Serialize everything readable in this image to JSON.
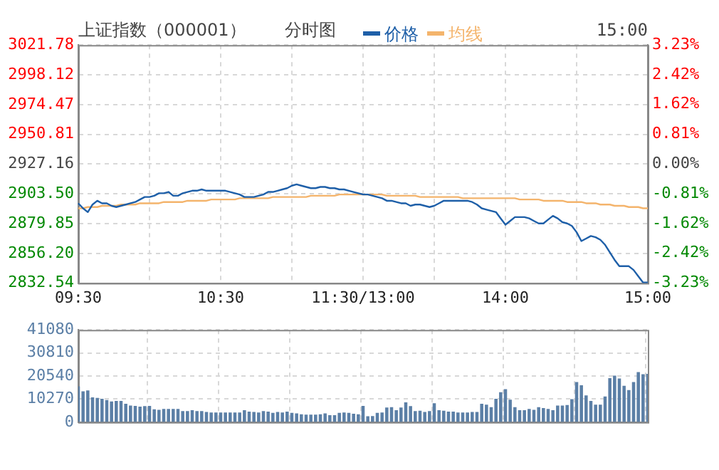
{
  "chart_data": [
    {
      "type": "line",
      "title": "上证指数（000001）",
      "subtitle": "分时图",
      "annotations": [
        "15:00"
      ],
      "legend": "top",
      "grid": true,
      "marker": "none",
      "categories": [
        "09:30",
        null,
        null,
        null,
        null,
        null,
        null,
        null,
        null,
        null,
        null,
        null,
        null,
        null,
        null,
        null,
        null,
        null,
        null,
        null,
        null,
        null,
        null,
        null,
        null,
        null,
        null,
        null,
        null,
        null,
        "10:30",
        null,
        null,
        null,
        null,
        null,
        null,
        null,
        null,
        null,
        null,
        null,
        null,
        null,
        null,
        null,
        null,
        null,
        null,
        null,
        null,
        null,
        null,
        null,
        null,
        null,
        null,
        null,
        null,
        null,
        "11:30/13:00",
        null,
        null,
        null,
        null,
        null,
        null,
        null,
        null,
        null,
        null,
        null,
        null,
        null,
        null,
        null,
        null,
        null,
        null,
        null,
        null,
        null,
        null,
        null,
        null,
        null,
        null,
        null,
        null,
        null,
        "14:00",
        null,
        null,
        null,
        null,
        null,
        null,
        null,
        null,
        null,
        null,
        null,
        null,
        null,
        null,
        null,
        null,
        null,
        null,
        null,
        null,
        null,
        null,
        null,
        null,
        null,
        null,
        null,
        null,
        null,
        "15:00"
      ],
      "ylim": [
        2832.54,
        3021.78
      ],
      "yticks": [
        2832.54,
        {
          "value": 2856.2,
          "label": "2856.20"
        },
        2879.85,
        {
          "value": 2903.5,
          "label": "2903.50"
        },
        2927.16,
        2950.81,
        2974.47,
        2998.12,
        3021.78
      ],
      "y2lim": [
        -3.23,
        3.23
      ],
      "y2ticks": [
        {
          "value": -3.23,
          "label": "-3.23%"
        },
        {
          "value": -2.42,
          "label": "-2.42%"
        },
        {
          "value": -1.62,
          "label": "-1.62%"
        },
        {
          "value": -0.81,
          "label": "-0.81%"
        },
        {
          "value": 0,
          "label": "0.00%"
        },
        {
          "value": 0.81,
          "label": "0.81%"
        },
        {
          "value": 1.62,
          "label": "1.62%"
        },
        {
          "value": 2.42,
          "label": "2.42%"
        },
        {
          "value": 3.23,
          "label": "3.23%"
        }
      ],
      "series": [
        {
          "name": "价格",
          "color": "#1e5fa8",
          "values": [
            2896,
            2892,
            2889,
            2895,
            2898,
            2896,
            2896,
            2894,
            2893,
            2894,
            2895,
            2896,
            2897,
            2899,
            2901,
            2901,
            2902,
            2904,
            2904,
            2905,
            2902,
            2902,
            2904,
            2905,
            2906,
            2906,
            2907,
            2906,
            2906,
            2906,
            2906,
            2906,
            2905,
            2904,
            2903,
            2901,
            2901,
            2901,
            2902,
            2903,
            2905,
            2905,
            2906,
            2907,
            2908,
            2910,
            2911,
            2910,
            2909,
            2908,
            2908,
            2909,
            2909,
            2908,
            2908,
            2907,
            2907,
            2906,
            2905,
            2904,
            2903,
            2903,
            2902,
            2901,
            2900,
            2898,
            2898,
            2897,
            2896,
            2896,
            2894,
            2895,
            2895,
            2894,
            2893,
            2894,
            2896,
            2898,
            2898,
            2898,
            2898,
            2898,
            2898,
            2897,
            2895,
            2892,
            2891,
            2890,
            2889,
            2884,
            2879,
            2882,
            2885,
            2885,
            2885,
            2884,
            2882,
            2880,
            2880,
            2883,
            2886,
            2884,
            2881,
            2880,
            2878,
            2873,
            2866,
            2868,
            2870,
            2869,
            2867,
            2863,
            2857,
            2851,
            2846,
            2846,
            2846,
            2843,
            2838,
            2833,
            2833
          ]
        },
        {
          "name": "均线",
          "color": "#f4b46c",
          "values": [
            2892,
            2892,
            2893,
            2893,
            2893,
            2894,
            2894,
            2894,
            2894,
            2895,
            2895,
            2895,
            2895,
            2896,
            2896,
            2896,
            2896,
            2896,
            2897,
            2897,
            2897,
            2897,
            2897,
            2898,
            2898,
            2898,
            2898,
            2898,
            2899,
            2899,
            2899,
            2899,
            2899,
            2899,
            2900,
            2900,
            2900,
            2900,
            2900,
            2900,
            2900,
            2901,
            2901,
            2901,
            2901,
            2901,
            2901,
            2901,
            2901,
            2902,
            2902,
            2902,
            2902,
            2902,
            2902,
            2903,
            2903,
            2903,
            2903,
            2903,
            2903,
            2903,
            2903,
            2903,
            2903,
            2902,
            2902,
            2902,
            2902,
            2902,
            2902,
            2902,
            2901,
            2901,
            2901,
            2901,
            2901,
            2901,
            2901,
            2901,
            2901,
            2900,
            2900,
            2900,
            2900,
            2900,
            2900,
            2900,
            2900,
            2900,
            2900,
            2900,
            2900,
            2899,
            2899,
            2899,
            2899,
            2899,
            2898,
            2898,
            2898,
            2898,
            2898,
            2897,
            2897,
            2897,
            2897,
            2896,
            2896,
            2896,
            2895,
            2895,
            2895,
            2894,
            2894,
            2894,
            2893,
            2893,
            2893,
            2892,
            2892
          ]
        }
      ]
    },
    {
      "type": "bar",
      "grid": true,
      "tick_labels": "y",
      "categories": [
        null,
        null,
        null,
        null,
        null,
        null,
        null,
        null,
        null,
        null,
        null,
        null,
        null,
        null,
        null,
        null,
        null,
        null,
        null,
        null,
        null,
        null,
        null,
        null,
        null,
        null,
        null,
        null,
        null,
        null,
        null,
        null,
        null,
        null,
        null,
        null,
        null,
        null,
        null,
        null,
        null,
        null,
        null,
        null,
        null,
        null,
        null,
        null,
        null,
        null,
        null,
        null,
        null,
        null,
        null,
        null,
        null,
        null,
        null,
        null,
        null,
        null,
        null,
        null,
        null,
        null,
        null,
        null,
        null,
        null,
        null,
        null,
        null,
        null,
        null,
        null,
        null,
        null,
        null,
        null,
        null,
        null,
        null,
        null,
        null,
        null,
        null,
        null,
        null,
        null,
        null,
        null,
        null,
        null,
        null,
        null,
        null,
        null,
        null,
        null,
        null,
        null,
        null,
        null,
        null,
        null,
        null,
        null,
        null,
        null,
        null,
        null,
        null,
        null,
        null,
        null,
        null,
        null,
        null,
        null,
        null
      ],
      "ylim": [
        0,
        41080
      ],
      "yticks": [
        0,
        10270,
        20540,
        30810,
        41080
      ],
      "series": [
        {
          "color": "#5b7fa6",
          "values": [
            15700,
            13500,
            13900,
            10800,
            10600,
            10200,
            9600,
            9000,
            9200,
            9200,
            8000,
            7200,
            7000,
            6700,
            6900,
            7000,
            5500,
            5300,
            5700,
            5700,
            5700,
            5700,
            4700,
            4700,
            5100,
            4700,
            4700,
            4300,
            4100,
            4100,
            4100,
            4100,
            4100,
            4100,
            4100,
            5100,
            4500,
            4300,
            4100,
            4700,
            4500,
            3900,
            4300,
            4100,
            4500,
            3900,
            3700,
            3300,
            3100,
            3100,
            3100,
            3300,
            3700,
            2900,
            2900,
            3900,
            4100,
            3900,
            3500,
            3300,
            7000,
            2400,
            2500,
            3900,
            4100,
            6300,
            6500,
            5100,
            6300,
            8600,
            6900,
            4700,
            4900,
            4300,
            4700,
            8200,
            5100,
            4900,
            4500,
            4500,
            4100,
            4100,
            4100,
            4300,
            4300,
            8000,
            7600,
            6500,
            10200,
            13100,
            14500,
            9800,
            6500,
            5100,
            5100,
            5700,
            5300,
            6500,
            6100,
            5700,
            5100,
            7200,
            7200,
            7400,
            10000,
            17600,
            16200,
            11700,
            9200,
            7600,
            7600,
            11200,
            19400,
            20500,
            19200,
            16000,
            14100,
            17600,
            22100,
            21100,
            21300
          ]
        }
      ]
    }
  ]
}
